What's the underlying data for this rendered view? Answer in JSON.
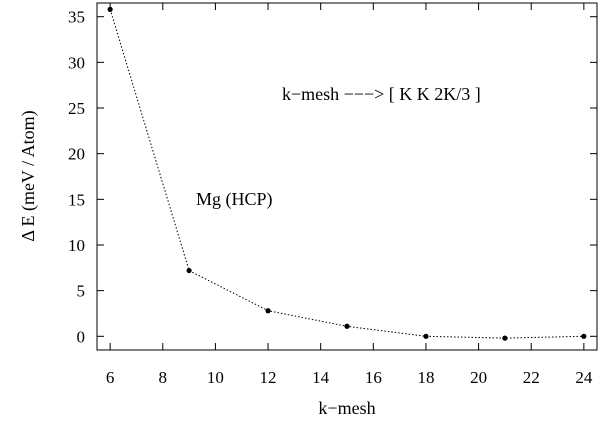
{
  "chart_data": {
    "type": "line",
    "title": "",
    "xlabel": "k−mesh",
    "ylabel": "Δ E  (meV / Atom)",
    "xlim": [
      5.5,
      24.5
    ],
    "ylim": [
      -1.5,
      36.5
    ],
    "x_ticks": [
      "6",
      "8",
      "10",
      "12",
      "14",
      "16",
      "18",
      "20",
      "22",
      "24"
    ],
    "y_ticks": [
      "0",
      "5",
      "10",
      "15",
      "20",
      "25",
      "30",
      "35"
    ],
    "series": [
      {
        "x": [
          6,
          9,
          12,
          15,
          18,
          21,
          24
        ],
        "y": [
          35.8,
          7.2,
          2.8,
          1.1,
          0.0,
          -0.2,
          0.0
        ]
      }
    ],
    "annotations": [
      "k−mesh −−−> [ K  K  2K/3 ]",
      "Mg (HCP)"
    ],
    "grid": false,
    "legend": "none"
  }
}
